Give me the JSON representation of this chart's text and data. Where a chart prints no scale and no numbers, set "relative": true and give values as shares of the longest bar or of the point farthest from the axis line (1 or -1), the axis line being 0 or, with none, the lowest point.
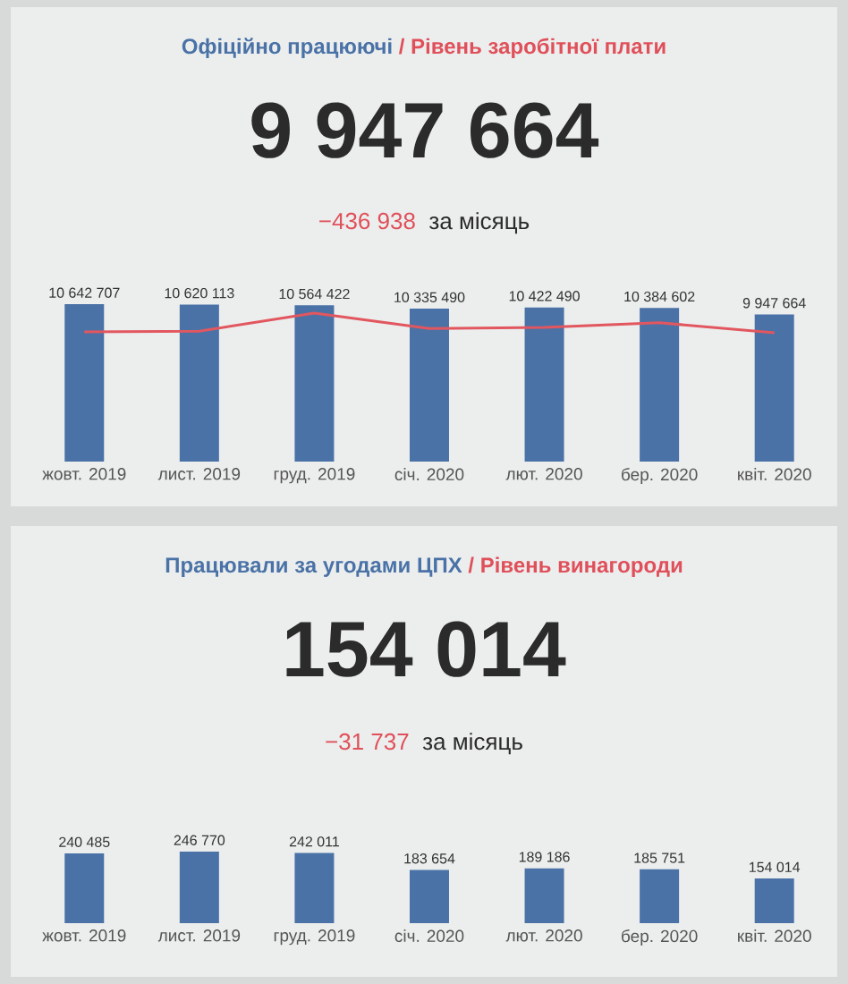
{
  "chart_data": [
    {
      "type": "bar",
      "title": "Офіційно працюючі",
      "subtitle": "/ Рівень заробітної плати",
      "annotations": [
        "9 947 664",
        "−436 938",
        "за місяць"
      ],
      "categories": [
        "жовт. 2019",
        "лист. 2019",
        "груд. 2019",
        "січ. 2020",
        "лют. 2020",
        "бер. 2020",
        "квіт. 2020"
      ],
      "values": [
        10642707,
        10620113,
        10564422,
        10335490,
        10422490,
        10384602,
        9947664
      ],
      "color": "#4a72a6",
      "value_labels": [
        "10 642 707",
        "10 620 113",
        "10 564 422",
        "10 335 490",
        "10 422 490",
        "10 384 602",
        "9 947 664"
      ]
    },
    {
      "type": "line",
      "relative": true,
      "tick_labels": false,
      "categories": [
        null,
        null,
        null,
        null,
        null,
        null,
        null
      ],
      "series": [
        {
          "color": "#e2575f",
          "values": [
            0.05,
            0.08,
            1,
            0.22,
            0.27,
            0.51,
            0
          ]
        }
      ]
    },
    {
      "type": "bar",
      "title": "Працювали за угодами ЦПХ",
      "subtitle": "/ Рівень винагороди",
      "annotations": [
        "154 014",
        "−31 737",
        "за місяць"
      ],
      "categories": [
        "жовт. 2019",
        "лист. 2019",
        "груд. 2019",
        "січ. 2020",
        "лют. 2020",
        "бер. 2020",
        "квіт. 2020"
      ],
      "values": [
        240485,
        246770,
        242011,
        183654,
        189186,
        185751,
        154014
      ],
      "color": "#4a72a6",
      "value_labels": [
        "240 485",
        "246 770",
        "242 011",
        "183 654",
        "189 186",
        "185 751",
        "154 014"
      ]
    }
  ]
}
